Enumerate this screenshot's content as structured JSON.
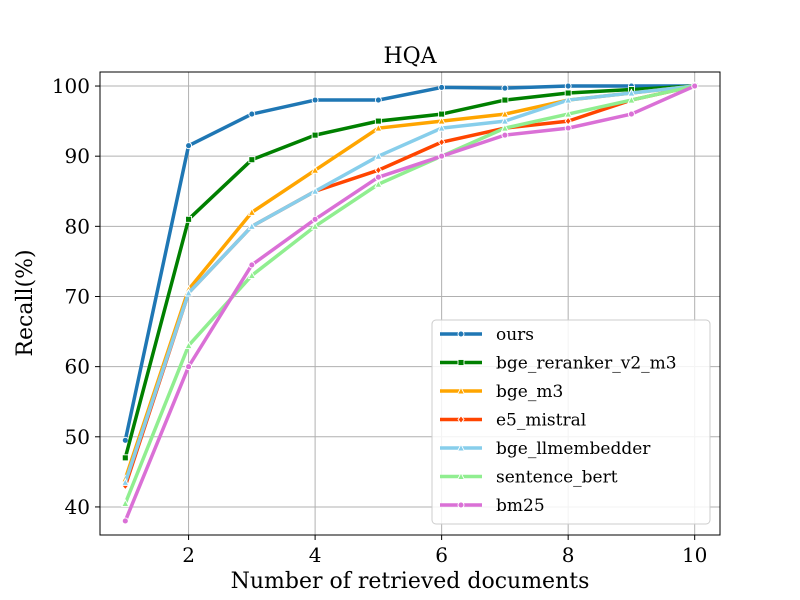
{
  "chart_data": {
    "type": "line",
    "title": "HQA",
    "xlabel": "Number of retrieved documents",
    "ylabel": "Recall(%)",
    "x": [
      1,
      2,
      3,
      4,
      5,
      6,
      7,
      8,
      9,
      10
    ],
    "xlim": [
      0.6,
      10.4
    ],
    "ylim": [
      36,
      102
    ],
    "xticks": [
      2,
      4,
      6,
      8,
      10
    ],
    "yticks": [
      40,
      50,
      60,
      70,
      80,
      90,
      100
    ],
    "grid": true,
    "legend_position": "lower-right",
    "series": [
      {
        "name": "ours",
        "color": "#1f77b4",
        "marker": "circle",
        "values": [
          49.5,
          91.5,
          96,
          98,
          98,
          99.8,
          99.7,
          100,
          100,
          100
        ]
      },
      {
        "name": "bge_reranker_v2_m3",
        "color": "#008000",
        "marker": "square",
        "values": [
          47,
          81,
          89.5,
          93,
          95,
          96,
          98,
          99,
          99.5,
          100
        ]
      },
      {
        "name": "bge_m3",
        "color": "#ffa500",
        "marker": "triangle",
        "values": [
          44,
          71,
          82,
          88,
          94,
          95,
          96,
          98,
          99,
          100
        ]
      },
      {
        "name": "e5_mistral",
        "color": "#ff4500",
        "marker": "diamond",
        "values": [
          43,
          70.5,
          80,
          85,
          88,
          92,
          94,
          95,
          98,
          100
        ]
      },
      {
        "name": "bge_llmembedder",
        "color": "#87ceeb",
        "marker": "triangle",
        "values": [
          43.5,
          70.5,
          80,
          85,
          90,
          94,
          95,
          98,
          99,
          100
        ]
      },
      {
        "name": "sentence_bert",
        "color": "#90ee90",
        "marker": "triangle",
        "values": [
          40.5,
          63,
          73,
          80,
          86,
          90,
          94,
          96,
          98,
          100
        ]
      },
      {
        "name": "bm25",
        "color": "#da70d6",
        "marker": "circle",
        "values": [
          38,
          60,
          74.5,
          81,
          87,
          90,
          93,
          94,
          96,
          100
        ]
      }
    ]
  }
}
